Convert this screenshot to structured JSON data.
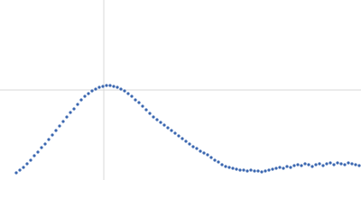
{
  "chart_data": {
    "type": "scatter",
    "x": [
      18,
      22,
      26,
      30,
      34,
      38,
      42,
      46,
      50,
      54,
      58,
      62,
      66,
      70,
      74,
      78,
      82,
      86,
      90,
      94,
      98,
      102,
      106,
      110,
      114,
      118,
      122,
      126,
      130,
      134,
      138,
      142,
      146,
      150,
      154,
      158,
      162,
      166,
      170,
      174,
      178,
      182,
      186,
      190,
      194,
      198,
      202,
      206,
      210,
      214,
      218,
      222,
      226,
      230,
      234,
      238,
      242,
      246,
      250,
      254,
      258,
      262,
      266,
      270,
      274,
      278,
      282,
      286,
      290,
      294,
      298,
      302,
      306,
      310,
      314,
      318,
      322,
      326,
      330,
      334,
      338,
      342,
      346,
      350,
      354,
      358,
      362,
      366,
      370,
      374,
      378,
      382,
      386,
      390,
      394,
      398
    ],
    "values": [
      8,
      11,
      14,
      18,
      22,
      27,
      31,
      36,
      40,
      45,
      50,
      55,
      60,
      65,
      70,
      75,
      79,
      84,
      89,
      93,
      96,
      99,
      101,
      103,
      104,
      105,
      105,
      104,
      103,
      101,
      99,
      96,
      93,
      89,
      86,
      82,
      78,
      74,
      70,
      67,
      64,
      61,
      58,
      55,
      52,
      49,
      46,
      43,
      40,
      37,
      35,
      32,
      30,
      28,
      25,
      22,
      20,
      17,
      15,
      14,
      13,
      12,
      11,
      11,
      10,
      11,
      10,
      10,
      9,
      10,
      11,
      12,
      13,
      14,
      13,
      15,
      14,
      16,
      17,
      16,
      18,
      17,
      15,
      17,
      18,
      16,
      18,
      19,
      17,
      19,
      18,
      17,
      19,
      18,
      17,
      16
    ],
    "color": "#3b67b0",
    "xlim": [
      0,
      400
    ],
    "ylim": [
      0,
      200
    ],
    "xticks": [
      115
    ],
    "yticks": [
      100
    ],
    "grid": true
  }
}
